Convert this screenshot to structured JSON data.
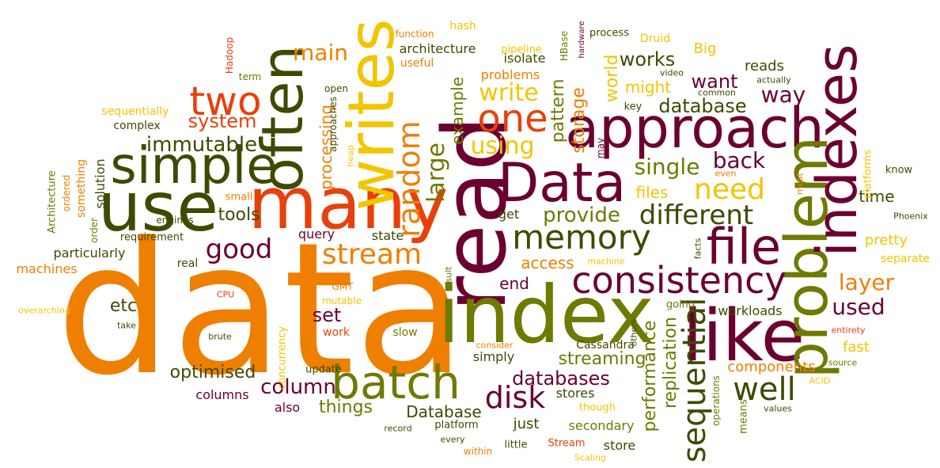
{
  "colors": {
    "orange": "#ef7f00",
    "gold": "#f2c500",
    "maroon": "#6b0030",
    "olive": "#6e7a00",
    "darkolive": "#3f4a00",
    "red": "#e8400c",
    "brown": "#7a5200"
  },
  "words": [
    {
      "t": "data",
      "c": "orange"
    },
    {
      "t": "many",
      "c": "red"
    },
    {
      "t": "read",
      "c": "maroon"
    },
    {
      "t": "index",
      "c": "olive"
    },
    {
      "t": "like",
      "c": "maroon"
    },
    {
      "t": "Data",
      "c": "maroon"
    },
    {
      "t": "approach",
      "c": "maroon"
    },
    {
      "t": "use",
      "c": "darkolive"
    },
    {
      "t": "simple",
      "c": "darkolive"
    },
    {
      "t": "writes",
      "c": "gold"
    },
    {
      "t": "often",
      "c": "darkolive"
    },
    {
      "t": "problem",
      "c": "olive"
    },
    {
      "t": "indexes",
      "c": "maroon"
    },
    {
      "t": "batch",
      "c": "olive"
    },
    {
      "t": "file",
      "c": "maroon"
    },
    {
      "t": "consistency",
      "c": "maroon"
    },
    {
      "t": "memory",
      "c": "darkolive"
    },
    {
      "t": "one",
      "c": "red"
    },
    {
      "t": "two",
      "c": "red"
    },
    {
      "t": "need",
      "c": "gold"
    },
    {
      "t": "different",
      "c": "darkolive"
    },
    {
      "t": "good",
      "c": "maroon"
    },
    {
      "t": "stream",
      "c": "orange"
    },
    {
      "t": "random",
      "c": "orange"
    },
    {
      "t": "large",
      "c": "olive"
    },
    {
      "t": "well",
      "c": "darkolive"
    },
    {
      "t": "sequential",
      "c": "darkolive"
    },
    {
      "t": "disk",
      "c": "maroon"
    },
    {
      "t": "write",
      "c": "gold"
    },
    {
      "t": "using",
      "c": "gold"
    },
    {
      "t": "immutable",
      "c": "darkolive"
    },
    {
      "t": "system",
      "c": "red"
    },
    {
      "t": "main",
      "c": "orange"
    },
    {
      "t": "way",
      "c": "maroon"
    },
    {
      "t": "database",
      "c": "darkolive"
    },
    {
      "t": "layer",
      "c": "orange"
    },
    {
      "t": "used",
      "c": "maroon"
    },
    {
      "t": "column",
      "c": "maroon"
    },
    {
      "t": "databases",
      "c": "maroon"
    },
    {
      "t": "provide",
      "c": "olive"
    },
    {
      "t": "single",
      "c": "olive"
    },
    {
      "t": "back",
      "c": "maroon"
    },
    {
      "t": "want",
      "c": "maroon"
    },
    {
      "t": "works",
      "c": "darkolive"
    },
    {
      "t": "might",
      "c": "gold"
    },
    {
      "t": "world",
      "c": "gold"
    },
    {
      "t": "storage",
      "c": "orange"
    },
    {
      "t": "pattern",
      "c": "olive"
    },
    {
      "t": "example",
      "c": "olive"
    },
    {
      "t": "processing",
      "c": "orange"
    },
    {
      "t": "tools",
      "c": "darkolive"
    },
    {
      "t": "set",
      "c": "maroon"
    },
    {
      "t": "etc",
      "c": "darkolive"
    },
    {
      "t": "optimised",
      "c": "darkolive"
    },
    {
      "t": "things",
      "c": "olive"
    },
    {
      "t": "Database",
      "c": "darkolive"
    },
    {
      "t": "streaming",
      "c": "olive"
    },
    {
      "t": "performance",
      "c": "olive"
    },
    {
      "t": "replication",
      "c": "olive"
    },
    {
      "t": "components",
      "c": "orange"
    },
    {
      "t": "access",
      "c": "orange"
    },
    {
      "t": "end",
      "c": "maroon"
    },
    {
      "t": "files",
      "c": "gold"
    },
    {
      "t": "time",
      "c": "darkolive"
    },
    {
      "t": "pretty",
      "c": "gold"
    },
    {
      "t": "fast",
      "c": "gold"
    },
    {
      "t": "Big",
      "c": "gold"
    },
    {
      "t": "reads",
      "c": "darkolive"
    },
    {
      "t": "architecture",
      "c": "darkolive"
    },
    {
      "t": "problems",
      "c": "orange"
    },
    {
      "t": "isolate",
      "c": "darkolive"
    },
    {
      "t": "get",
      "c": "darkolive"
    },
    {
      "t": "state",
      "c": "darkolive"
    },
    {
      "t": "query",
      "c": "maroon"
    },
    {
      "t": "solution",
      "c": "darkolive"
    },
    {
      "t": "particularly",
      "c": "darkolive"
    },
    {
      "t": "machines",
      "c": "orange"
    },
    {
      "t": "columns",
      "c": "maroon"
    },
    {
      "t": "also",
      "c": "maroon"
    },
    {
      "t": "just",
      "c": "darkolive"
    },
    {
      "t": "secondary",
      "c": "olive"
    },
    {
      "t": "simply",
      "c": "darkolive"
    },
    {
      "t": "stores",
      "c": "darkolive"
    },
    {
      "t": "workloads",
      "c": "darkolive"
    },
    {
      "t": "store",
      "c": "darkolive"
    },
    {
      "t": "slow",
      "c": "olive"
    },
    {
      "t": "Cassandra",
      "c": "darkolive"
    },
    {
      "t": "requirement",
      "c": "darkolive"
    },
    {
      "t": "engines",
      "c": "darkolive"
    },
    {
      "t": "sequentially",
      "c": "gold"
    },
    {
      "t": "complex",
      "c": "darkolive"
    },
    {
      "t": "something",
      "c": "orange"
    },
    {
      "t": "Architecture",
      "c": "olive"
    },
    {
      "t": "ordered",
      "c": "orange"
    },
    {
      "t": "order",
      "c": "olive"
    },
    {
      "t": "small",
      "c": "orange"
    },
    {
      "t": "real",
      "c": "darkolive"
    },
    {
      "t": "update",
      "c": "darkolive"
    },
    {
      "t": "concurrency",
      "c": "gold"
    },
    {
      "t": "work",
      "c": "red"
    },
    {
      "t": "mutable",
      "c": "gold"
    },
    {
      "t": "GMT",
      "c": "orange"
    },
    {
      "t": "CPU",
      "c": "red"
    },
    {
      "t": "overarching",
      "c": "gold"
    },
    {
      "t": "take",
      "c": "darkolive"
    },
    {
      "t": "brute",
      "c": "darkolive"
    },
    {
      "t": "result",
      "c": "olive"
    },
    {
      "t": "machine",
      "c": "gold"
    },
    {
      "t": "consider",
      "c": "orange"
    },
    {
      "t": "going",
      "c": "olive"
    },
    {
      "t": "others",
      "c": "darkolive"
    },
    {
      "t": "operations",
      "c": "olive"
    },
    {
      "t": "means",
      "c": "olive"
    },
    {
      "t": "though",
      "c": "gold"
    },
    {
      "t": "Stream",
      "c": "red"
    },
    {
      "t": "Scaling",
      "c": "gold"
    },
    {
      "t": "little",
      "c": "darkolive"
    },
    {
      "t": "within",
      "c": "orange"
    },
    {
      "t": "every",
      "c": "darkolive"
    },
    {
      "t": "platform",
      "c": "darkolive"
    },
    {
      "t": "record",
      "c": "darkolive"
    },
    {
      "t": "values",
      "c": "darkolive"
    },
    {
      "t": "ACID",
      "c": "gold"
    },
    {
      "t": "source",
      "c": "olive"
    },
    {
      "t": "entirety",
      "c": "red"
    },
    {
      "t": "separate",
      "c": "gold"
    },
    {
      "t": "Phoenix",
      "c": "darkolive"
    },
    {
      "t": "platforms",
      "c": "gold"
    },
    {
      "t": "know",
      "c": "darkolive"
    },
    {
      "t": "must",
      "c": "orange"
    },
    {
      "t": "even",
      "c": "orange"
    },
    {
      "t": "may",
      "c": "maroon"
    },
    {
      "t": "facts",
      "c": "darkolive"
    },
    {
      "t": "key",
      "c": "darkolive"
    },
    {
      "t": "common",
      "c": "darkolive"
    },
    {
      "t": "actually",
      "c": "darkolive"
    },
    {
      "t": "video",
      "c": "darkolive"
    },
    {
      "t": "hardware",
      "c": "maroon"
    },
    {
      "t": "HBase",
      "c": "olive"
    },
    {
      "t": "process",
      "c": "darkolive"
    },
    {
      "t": "Druid",
      "c": "gold"
    },
    {
      "t": "pipeline",
      "c": "gold"
    },
    {
      "t": "hash",
      "c": "gold"
    },
    {
      "t": "function",
      "c": "orange"
    },
    {
      "t": "useful",
      "c": "orange"
    },
    {
      "t": "term",
      "c": "olive"
    },
    {
      "t": "Hadoop",
      "c": "red"
    },
    {
      "t": "open",
      "c": "darkolive"
    },
    {
      "t": "approaches",
      "c": "darkolive"
    },
    {
      "t": "heap",
      "c": "gold"
    }
  ]
}
